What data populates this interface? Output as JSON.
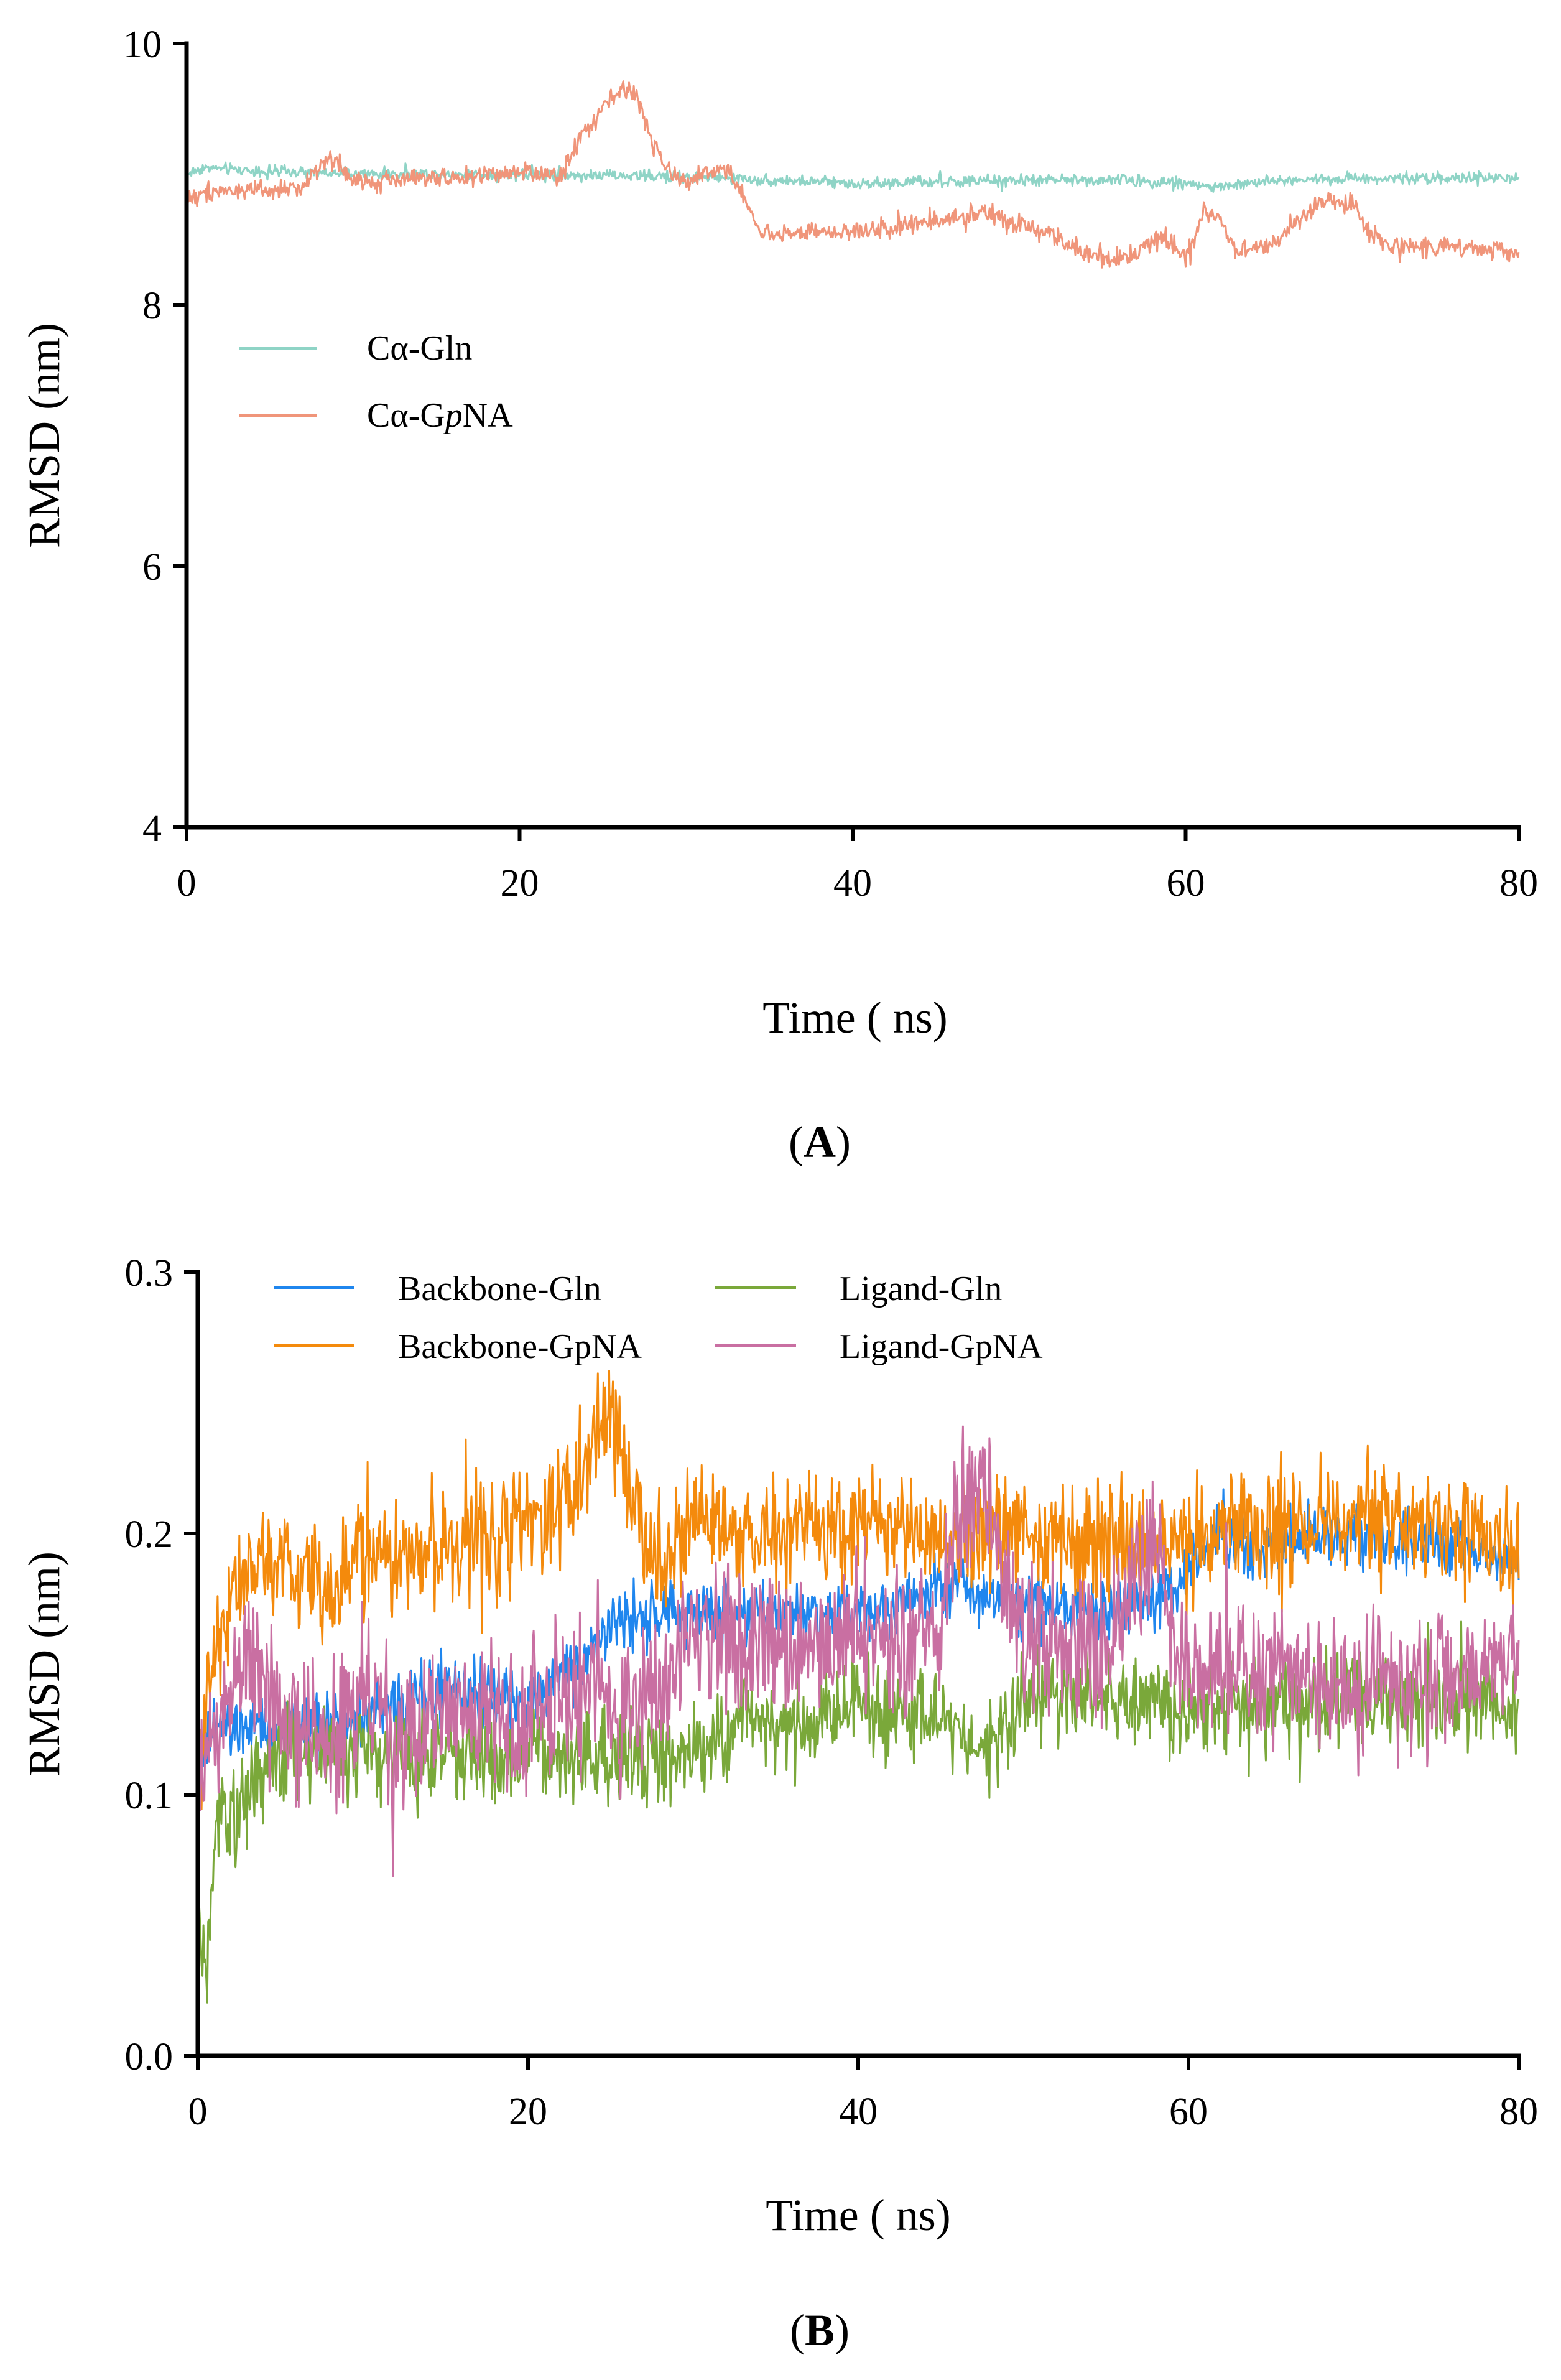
{
  "chart_data": [
    {
      "type": "line",
      "panel_label": "A",
      "xlabel": "Time ( ns)",
      "ylabel": "RMSD (nm)",
      "xlim": [
        0,
        80
      ],
      "ylim": [
        4,
        10
      ],
      "xticks": [
        0,
        20,
        40,
        60,
        80
      ],
      "yticks": [
        4,
        6,
        8,
        10
      ],
      "legend_position": "upper-left",
      "series": [
        {
          "name": "Cα-Gln",
          "label_prefix": "Cα-Gln",
          "label_italic": "",
          "label_suffix": "",
          "color": "#8fd4c6",
          "noise": 0.03,
          "x": [
            0,
            1,
            5,
            10,
            20,
            30,
            40,
            45,
            50,
            55,
            60,
            62,
            65,
            70,
            75,
            80
          ],
          "y": [
            9.0,
            9.05,
            9.02,
            9.0,
            9.0,
            8.98,
            8.93,
            8.94,
            8.95,
            8.96,
            8.93,
            8.9,
            8.95,
            8.97,
            8.97,
            8.97
          ]
        },
        {
          "name": "Cα-GpNA",
          "label_prefix": "Cα-G",
          "label_italic": "p",
          "label_suffix": "NA",
          "color": "#f0957a",
          "noise": 0.05,
          "x": [
            0,
            2,
            5,
            7,
            8.5,
            10,
            15,
            20,
            22.5,
            23.5,
            24.5,
            25.5,
            26.5,
            27,
            28,
            29,
            30,
            31,
            32.5,
            33.5,
            34.5,
            35,
            40,
            45,
            48,
            50,
            52,
            53,
            55,
            56,
            57,
            58,
            59,
            60,
            61,
            62,
            63,
            64,
            65,
            66,
            67,
            68,
            70,
            71,
            72,
            75,
            80
          ],
          "y": [
            8.82,
            8.88,
            8.86,
            8.9,
            9.15,
            8.95,
            8.97,
            9.0,
            9.0,
            9.25,
            9.4,
            9.6,
            9.65,
            9.6,
            9.25,
            9.0,
            8.95,
            9.0,
            9.05,
            8.8,
            8.55,
            8.55,
            8.55,
            8.65,
            8.7,
            8.6,
            8.55,
            8.45,
            8.35,
            8.35,
            8.4,
            8.5,
            8.5,
            8.35,
            8.7,
            8.65,
            8.42,
            8.42,
            8.45,
            8.55,
            8.65,
            8.78,
            8.78,
            8.55,
            8.45,
            8.45,
            8.4
          ]
        }
      ]
    },
    {
      "type": "line",
      "panel_label": "B",
      "xlabel": "Time ( ns)",
      "ylabel": "RMSD (nm)",
      "xlim": [
        0,
        80
      ],
      "ylim": [
        0.0,
        0.3
      ],
      "xticks": [
        0,
        20,
        40,
        60,
        80
      ],
      "yticks": [
        0.0,
        0.1,
        0.2,
        0.3
      ],
      "legend_position": "top",
      "series": [
        {
          "name": "Backbone-Gln",
          "color": "#1f86ee",
          "noise": 0.008,
          "x": [
            0,
            0.5,
            1,
            5,
            10,
            15,
            20,
            22,
            25,
            30,
            35,
            40,
            45,
            50,
            55,
            58,
            60,
            62,
            65,
            70,
            75,
            80
          ],
          "y": [
            0.1,
            0.12,
            0.125,
            0.125,
            0.13,
            0.14,
            0.135,
            0.145,
            0.165,
            0.17,
            0.17,
            0.17,
            0.18,
            0.175,
            0.17,
            0.175,
            0.185,
            0.2,
            0.195,
            0.2,
            0.195,
            0.19
          ]
        },
        {
          "name": "Backbone-GpNA",
          "color": "#f48a0c",
          "noise": 0.015,
          "x": [
            0,
            1,
            2,
            4,
            8,
            10,
            15,
            20,
            23,
            25,
            26,
            27,
            28,
            30,
            35,
            40,
            45,
            50,
            55,
            60,
            65,
            70,
            75,
            80
          ],
          "y": [
            0.11,
            0.15,
            0.18,
            0.19,
            0.18,
            0.19,
            0.195,
            0.205,
            0.22,
            0.245,
            0.22,
            0.205,
            0.19,
            0.2,
            0.2,
            0.205,
            0.2,
            0.2,
            0.195,
            0.2,
            0.2,
            0.205,
            0.2,
            0.195
          ]
        },
        {
          "name": "Ligand-Gln",
          "color": "#7aa83a",
          "noise": 0.012,
          "x": [
            0,
            0.5,
            1,
            1.5,
            2.5,
            3.5,
            5,
            10,
            20,
            30,
            32,
            33,
            35,
            40,
            45,
            48,
            50,
            52,
            60,
            70,
            75,
            80
          ],
          "y": [
            0.06,
            0.03,
            0.08,
            0.1,
            0.09,
            0.11,
            0.115,
            0.115,
            0.115,
            0.115,
            0.12,
            0.135,
            0.125,
            0.135,
            0.13,
            0.115,
            0.135,
            0.14,
            0.135,
            0.135,
            0.135,
            0.135
          ]
        },
        {
          "name": "Ligand-GpNA",
          "color": "#c96fa2",
          "noise": 0.018,
          "x": [
            0,
            1,
            3,
            5,
            8,
            10,
            12,
            15,
            20,
            22,
            25,
            28,
            30,
            35,
            40,
            45,
            46,
            47.5,
            50,
            55,
            58,
            59,
            60,
            65,
            70,
            75,
            80
          ],
          "y": [
            0.1,
            0.13,
            0.15,
            0.13,
            0.12,
            0.14,
            0.12,
            0.13,
            0.13,
            0.14,
            0.135,
            0.14,
            0.16,
            0.155,
            0.16,
            0.16,
            0.21,
            0.215,
            0.16,
            0.155,
            0.2,
            0.165,
            0.15,
            0.145,
            0.14,
            0.145,
            0.15
          ]
        }
      ]
    }
  ]
}
